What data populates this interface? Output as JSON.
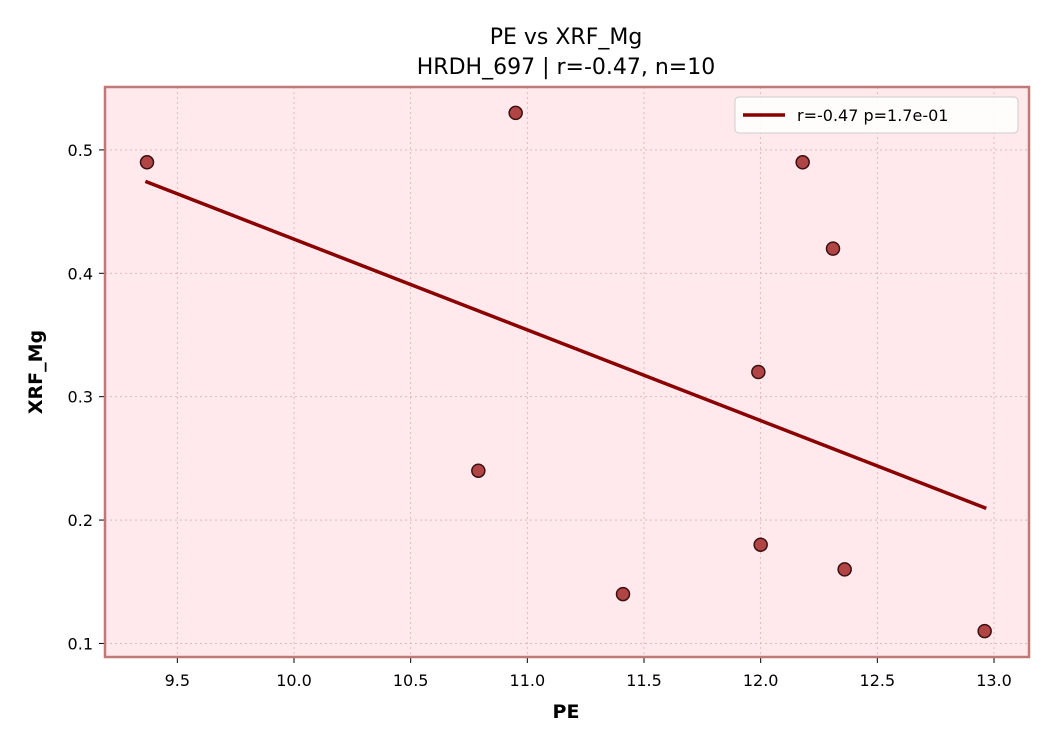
{
  "chart_data": {
    "type": "scatter",
    "title": "PE vs XRF_Mg",
    "subtitle": "HRDH_697 | r=-0.47, n=10",
    "xlabel": "PE",
    "ylabel": "XRF_Mg",
    "xlim": [
      9.19,
      13.15
    ],
    "ylim": [
      0.089,
      0.551
    ],
    "xticks": [
      "9.5",
      "10.0",
      "10.5",
      "11.0",
      "11.5",
      "12.0",
      "12.5",
      "13.0"
    ],
    "yticks": [
      "0.1",
      "0.2",
      "0.3",
      "0.4",
      "0.5"
    ],
    "grid": true,
    "legend_position": "top-right",
    "series": [
      {
        "kind": "points",
        "x": [
          9.37,
          10.79,
          10.95,
          11.41,
          11.99,
          12.0,
          12.18,
          12.31,
          12.36,
          12.96
        ],
        "y": [
          0.49,
          0.24,
          0.53,
          0.14,
          0.32,
          0.18,
          0.49,
          0.42,
          0.16,
          0.11
        ],
        "color": "#a83232"
      },
      {
        "kind": "fit-line",
        "name": "r=-0.47  p=1.7e-01",
        "x": [
          9.37,
          12.96
        ],
        "y": [
          0.474,
          0.21
        ],
        "color": "#8b0000"
      }
    ],
    "colors": {
      "plot_background": "#ffe9ec",
      "plot_border": "#c07878",
      "point_fill": "#a83232",
      "point_edge": "#3a1010",
      "fit_line": "#8b0000"
    }
  }
}
